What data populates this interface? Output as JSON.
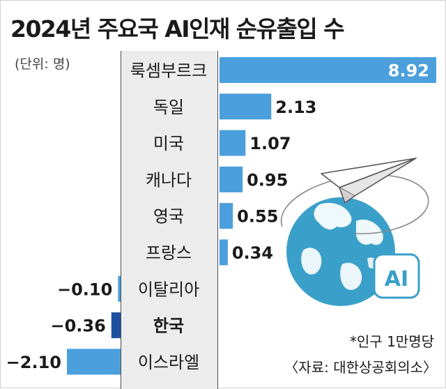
{
  "title": "2024년 주요국 AI인재 순유출입 수",
  "unit_label": "(단위: 명)",
  "note": "*인구 1만명당",
  "source": "〈자료: 대한상공회의소〉",
  "illustration": {
    "badge_text": "AI",
    "icons": [
      "globe-icon",
      "paper-plane-icon"
    ]
  },
  "colors": {
    "bar": "#4a9fdc",
    "bar_highlight": "#1f4fa3",
    "label_band": "#ececec",
    "globe": "#3aa0c9",
    "globe_land": "#ffffff"
  },
  "chart_data": {
    "type": "bar",
    "orientation": "horizontal",
    "categories": [
      "룩셈부르크",
      "독일",
      "미국",
      "캐나다",
      "영국",
      "프랑스",
      "이탈리아",
      "한국",
      "이스라엘"
    ],
    "values": [
      8.92,
      2.13,
      1.07,
      0.95,
      0.55,
      0.34,
      -0.1,
      -0.36,
      -2.1
    ],
    "value_labels": [
      "8.92",
      "2.13",
      "1.07",
      "0.95",
      "0.55",
      "0.34",
      "−0.10",
      "−0.36",
      "−2.10"
    ],
    "highlight": "한국",
    "title": "2024년 주요국 AI인재 순유출입 수",
    "xlabel": "",
    "ylabel": ""
  }
}
